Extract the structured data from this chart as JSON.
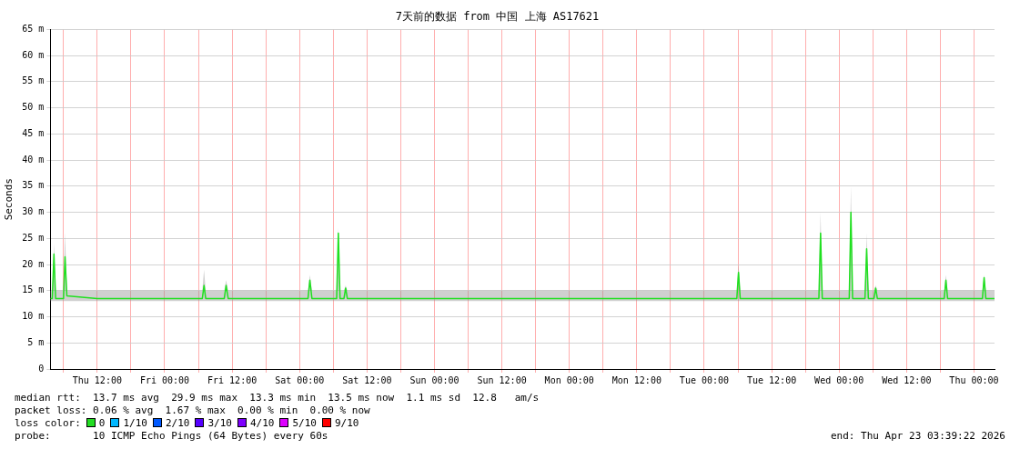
{
  "chart_data": {
    "type": "line",
    "title": "7天前的数据 from 中国 上海 AS17621",
    "ylabel": "Seconds",
    "xlim": [
      "2026-04-16T03:39",
      "2026-04-23T03:39"
    ],
    "xticks": [
      {
        "value": "2026-04-16T06:00",
        "label": null
      },
      {
        "value": "2026-04-16T12:00",
        "label": "Thu 12:00"
      },
      {
        "value": "2026-04-16T18:00",
        "label": null
      },
      {
        "value": "2026-04-17T00:00",
        "label": "Fri 00:00"
      },
      {
        "value": "2026-04-17T06:00",
        "label": null
      },
      {
        "value": "2026-04-17T12:00",
        "label": "Fri 12:00"
      },
      {
        "value": "2026-04-17T18:00",
        "label": null
      },
      {
        "value": "2026-04-18T00:00",
        "label": "Sat 00:00"
      },
      {
        "value": "2026-04-18T06:00",
        "label": null
      },
      {
        "value": "2026-04-18T12:00",
        "label": "Sat 12:00"
      },
      {
        "value": "2026-04-18T18:00",
        "label": null
      },
      {
        "value": "2026-04-19T00:00",
        "label": "Sun 00:00"
      },
      {
        "value": "2026-04-19T06:00",
        "label": null
      },
      {
        "value": "2026-04-19T12:00",
        "label": "Sun 12:00"
      },
      {
        "value": "2026-04-19T18:00",
        "label": null
      },
      {
        "value": "2026-04-20T00:00",
        "label": "Mon 00:00"
      },
      {
        "value": "2026-04-20T06:00",
        "label": null
      },
      {
        "value": "2026-04-20T12:00",
        "label": "Mon 12:00"
      },
      {
        "value": "2026-04-20T18:00",
        "label": null
      },
      {
        "value": "2026-04-21T00:00",
        "label": "Tue 00:00"
      },
      {
        "value": "2026-04-21T06:00",
        "label": null
      },
      {
        "value": "2026-04-21T12:00",
        "label": "Tue 12:00"
      },
      {
        "value": "2026-04-21T18:00",
        "label": null
      },
      {
        "value": "2026-04-22T00:00",
        "label": "Wed 00:00"
      },
      {
        "value": "2026-04-22T06:00",
        "label": null
      },
      {
        "value": "2026-04-22T12:00",
        "label": "Wed 12:00"
      },
      {
        "value": "2026-04-22T18:00",
        "label": null
      },
      {
        "value": "2026-04-23T00:00",
        "label": "Thu 00:00"
      }
    ],
    "ylim": [
      0,
      65
    ],
    "yticks": [
      {
        "value": 0,
        "label": "0"
      },
      {
        "value": 5,
        "label": "5 m"
      },
      {
        "value": 10,
        "label": "10 m"
      },
      {
        "value": 15,
        "label": "15 m"
      },
      {
        "value": 20,
        "label": "20 m"
      },
      {
        "value": 25,
        "label": "25 m"
      },
      {
        "value": 30,
        "label": "30 m"
      },
      {
        "value": 35,
        "label": "35 m"
      },
      {
        "value": 40,
        "label": "40 m"
      },
      {
        "value": 45,
        "label": "45 m"
      },
      {
        "value": 50,
        "label": "50 m"
      },
      {
        "value": 55,
        "label": "55 m"
      },
      {
        "value": 60,
        "label": "60 m"
      },
      {
        "value": 65,
        "label": "65 m"
      }
    ],
    "grid": true,
    "legend": false,
    "marker": "none",
    "line_style": "solid",
    "series": [
      {
        "color": "#20e020",
        "x": [
          "2026-04-16T03:39",
          "2026-04-16T04:00",
          "2026-04-16T04:18",
          "2026-04-16T04:36",
          "2026-04-16T06:00",
          "2026-04-16T06:16",
          "2026-04-16T06:36",
          "2026-04-16T12:00",
          "2026-04-16T20:00",
          "2026-04-17T06:42",
          "2026-04-17T07:00",
          "2026-04-17T07:18",
          "2026-04-17T10:36",
          "2026-04-17T10:56",
          "2026-04-17T11:18",
          "2026-04-18T01:30",
          "2026-04-18T01:50",
          "2026-04-18T02:12",
          "2026-04-18T06:36",
          "2026-04-18T06:54",
          "2026-04-18T07:12",
          "2026-04-18T07:54",
          "2026-04-18T08:12",
          "2026-04-18T08:30",
          "2026-04-18T22:00",
          "2026-04-19T18:00",
          "2026-04-20T14:00",
          "2026-04-21T05:48",
          "2026-04-21T06:06",
          "2026-04-21T06:24",
          "2026-04-21T20:24",
          "2026-04-21T20:42",
          "2026-04-21T21:00",
          "2026-04-22T01:48",
          "2026-04-22T02:06",
          "2026-04-22T02:24",
          "2026-04-22T04:36",
          "2026-04-22T04:54",
          "2026-04-22T05:12",
          "2026-04-22T06:12",
          "2026-04-22T06:30",
          "2026-04-22T06:48",
          "2026-04-22T18:42",
          "2026-04-22T19:00",
          "2026-04-22T19:18",
          "2026-04-23T01:30",
          "2026-04-23T01:48",
          "2026-04-23T02:06",
          "2026-04-23T03:39"
        ],
        "values": [
          13.5,
          13.5,
          22,
          13.5,
          13.5,
          21.5,
          14,
          13.5,
          13.5,
          13.5,
          16,
          13.5,
          13.5,
          16,
          13.5,
          13.5,
          17,
          13.5,
          13.5,
          26,
          13.5,
          13.5,
          15.5,
          13.5,
          13.5,
          13.5,
          13.5,
          13.5,
          18.5,
          13.5,
          13.5,
          26,
          13.5,
          13.5,
          30,
          13.5,
          13.5,
          23,
          13.5,
          13.5,
          15.5,
          13.5,
          13.5,
          17,
          13.5,
          13.5,
          17.5,
          13.5,
          13.5
        ],
        "lower": [
          13,
          13,
          13,
          13,
          13,
          13,
          13,
          13,
          13,
          13,
          13,
          13,
          13,
          13,
          13,
          13,
          13,
          13,
          13,
          13,
          13,
          13,
          13,
          13,
          13,
          13,
          13,
          13,
          13,
          13,
          13,
          13,
          13,
          13,
          13,
          13,
          13,
          13,
          13,
          13,
          13,
          13,
          13,
          13,
          13,
          13,
          13,
          13,
          13
        ],
        "upper": [
          15,
          15,
          24,
          15,
          15,
          26,
          15,
          15,
          15,
          15,
          19,
          15,
          15,
          17,
          15,
          15,
          18,
          15,
          15,
          27,
          15,
          15,
          16,
          15,
          15,
          15,
          15,
          15,
          20,
          15,
          15,
          30,
          15,
          15,
          35,
          15,
          15,
          26,
          15,
          15,
          16,
          15,
          15,
          18,
          15,
          15,
          18,
          15,
          15
        ]
      }
    ],
    "annotations": [
      "median rtt:  13.7 ms avg  29.9 ms max  13.3 ms min  13.5 ms now  1.1 ms sd  12.8   am/s",
      "packet loss: 0.06 % avg  1.67 % max  0.00 % min  0.00 % now",
      "loss color:",
      "0",
      "1/10",
      "2/10",
      "3/10",
      "4/10",
      "5/10",
      "9/10",
      "probe:       10 ICMP Echo Pings (64 Bytes) every 60s",
      "end: Thu Apr 23 03:39:22 2026"
    ]
  }
}
